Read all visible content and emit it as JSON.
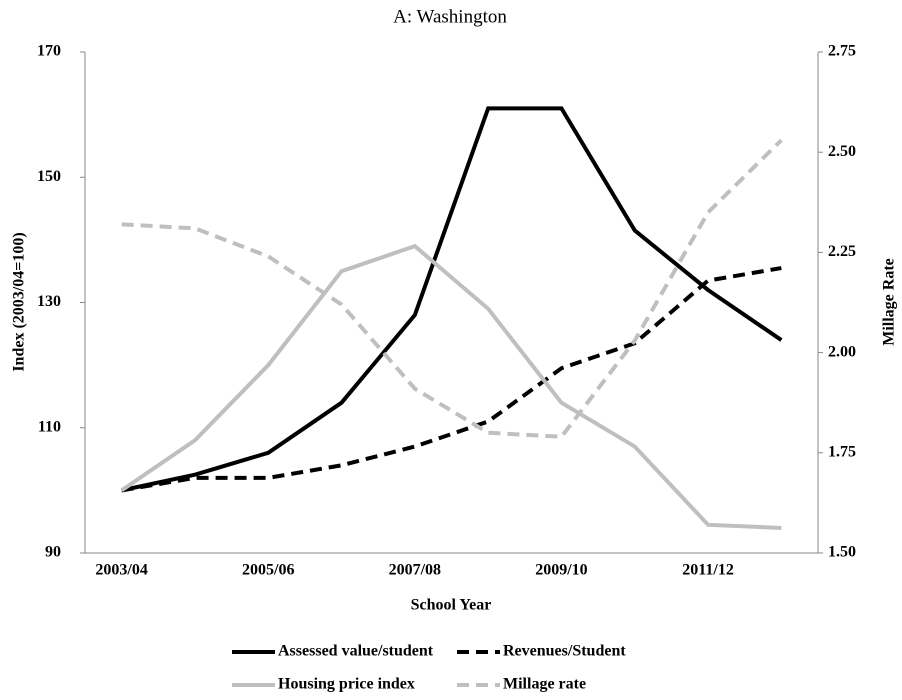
{
  "chart_data": {
    "type": "line",
    "title": "A: Washington",
    "x_label": "School Year",
    "y_label": "Index (2003/04=100)",
    "y2_label": "Millage Rate",
    "categories": [
      "2003/04",
      null,
      "2005/06",
      null,
      "2007/08",
      null,
      "2009/10",
      null,
      "2011/12",
      null
    ],
    "series": [
      {
        "name": "Assessed value/student",
        "color": "#000000",
        "dashed": false,
        "values": [
          100,
          102.5,
          106,
          114,
          128,
          161,
          161,
          141.5,
          132,
          124
        ]
      },
      {
        "name": "Revenues/Student",
        "color": "#000000",
        "dashed": true,
        "values": [
          100,
          102,
          102,
          104,
          107,
          111,
          119.5,
          123.5,
          133.5,
          135.5
        ]
      },
      {
        "name": "Housing price index",
        "color": "#bfbfbf",
        "dashed": false,
        "values": [
          100,
          108,
          120,
          135,
          139,
          129,
          114,
          107,
          94.5,
          94
        ]
      },
      {
        "name": "Millage rate",
        "color": "#bfbfbf",
        "dashed": true,
        "axis": "y2",
        "values": [
          2.32,
          2.31,
          2.24,
          2.12,
          1.91,
          1.8,
          1.79,
          2.03,
          2.35,
          2.53
        ]
      }
    ],
    "ylim": [
      90,
      170
    ],
    "yticks": [
      90,
      110,
      130,
      150,
      170
    ],
    "y2lim": [
      1.5,
      2.75
    ],
    "y2ticks": [
      {
        "value": 1.5,
        "label": "1.50"
      },
      1.75,
      {
        "value": 2,
        "label": "2.00"
      },
      2.25,
      {
        "value": 2.5,
        "label": "2.50"
      },
      2.75
    ],
    "legend": "bottom"
  }
}
